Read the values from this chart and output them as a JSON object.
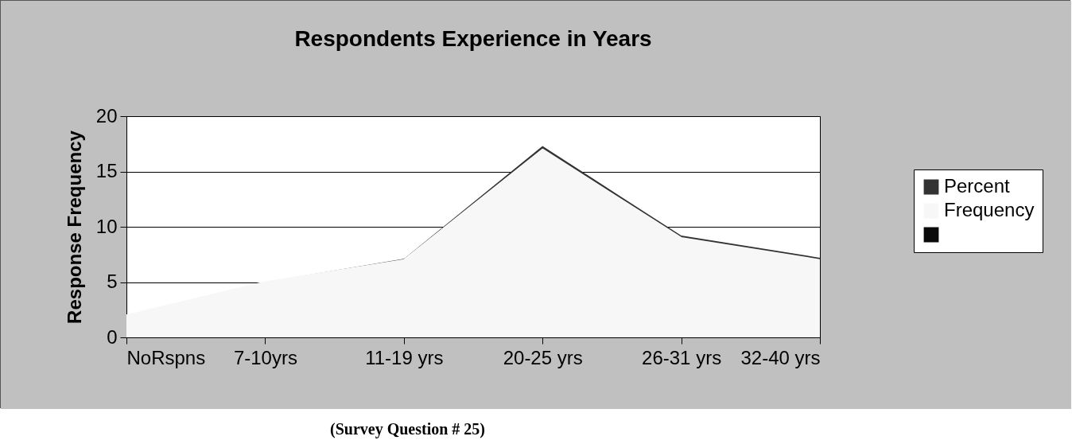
{
  "chart_data": {
    "type": "area",
    "title": "Respondents Experience in Years",
    "ylabel": "Response Frequency",
    "categories": [
      "NoRspns",
      "7-10yrs",
      "11-19 yrs",
      "20-25 yrs",
      "26-31 yrs",
      "32-40 yrs"
    ],
    "series": [
      {
        "name": "Percent",
        "color": "#333333",
        "values": [
          2,
          5,
          7.1,
          17.3,
          9.2,
          7.2
        ]
      },
      {
        "name": "Frequency",
        "color": "#f7f7f7",
        "values": [
          2,
          5,
          7,
          17,
          9,
          7
        ]
      },
      {
        "color": "#0a0a0a",
        "values": [
          null,
          null,
          null,
          null,
          null,
          null
        ]
      }
    ],
    "ylim": [
      0,
      20
    ],
    "yticks": [
      0,
      5,
      10,
      15,
      20
    ],
    "grid": "y",
    "legend": "right",
    "annotations": [
      "(Survey Question # 25)"
    ]
  }
}
